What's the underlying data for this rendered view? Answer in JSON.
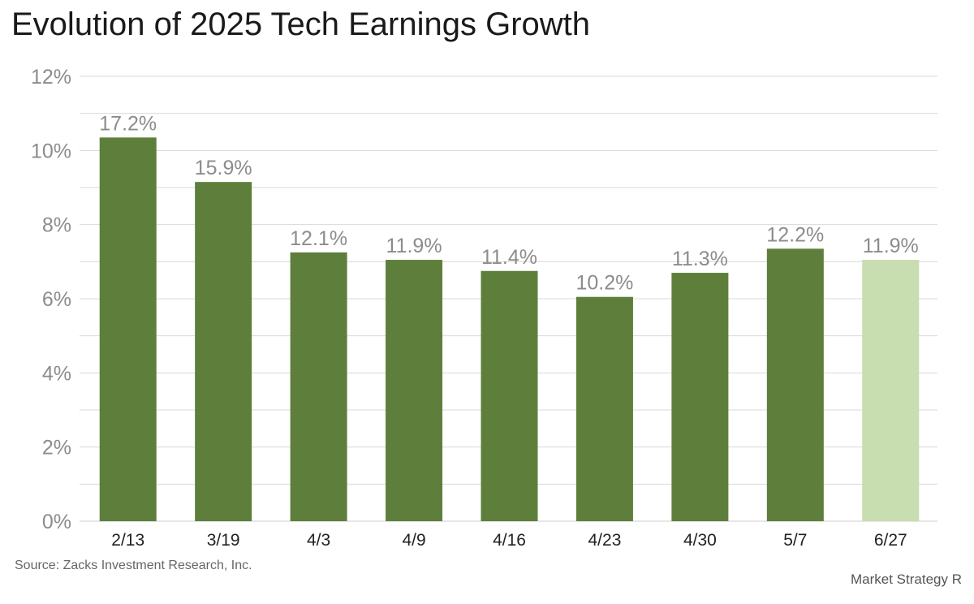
{
  "title": "Evolution of 2025 Tech Earnings Growth",
  "source": "Source: Zacks Investment Research, Inc.",
  "footer_brand": "Market Strategy R",
  "colors": {
    "bar": "#5e7f3b",
    "bar_highlight": "#c8ddb0",
    "grid": "#d9d9d9",
    "axis": "#cccccc"
  },
  "chart_data": {
    "type": "bar",
    "title": "Evolution of 2025 Tech Earnings Growth",
    "categories": [
      "2/13",
      "3/19",
      "4/3",
      "4/9",
      "4/16",
      "4/23",
      "4/30",
      "5/7",
      "6/27"
    ],
    "values": [
      17.2,
      15.9,
      12.1,
      11.9,
      11.4,
      10.2,
      11.3,
      12.2,
      11.9
    ],
    "data_labels": [
      "17.2%",
      "15.9%",
      "12.1%",
      "11.9%",
      "11.4%",
      "10.2%",
      "11.3%",
      "12.2%",
      "11.9%"
    ],
    "highlight_index": 8,
    "y_tick_labels": [
      "0%",
      "2%",
      "4%",
      "6%",
      "8%",
      "10%",
      "12%"
    ],
    "y_axis_bar_heights": [
      0,
      10.54,
      8.58,
      7.41,
      7.2,
      7.0,
      6.11,
      6.7,
      7.22,
      7.05
    ],
    "ylim": [
      0,
      12
    ],
    "xlabel": "",
    "ylabel": "",
    "grid": true,
    "legend": "none"
  }
}
